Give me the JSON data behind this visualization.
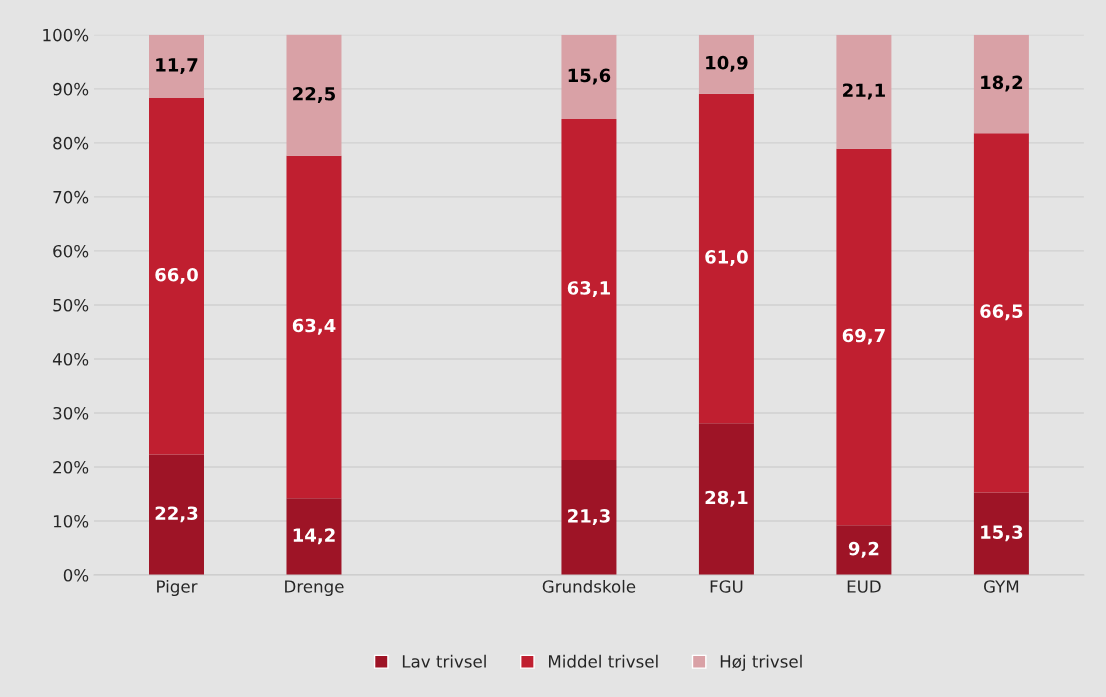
{
  "chart_data": {
    "type": "bar",
    "stacked": true,
    "categories": [
      "Piger",
      "Drenge",
      null,
      "Grundskole",
      "FGU",
      "EUD",
      "GYM"
    ],
    "series": [
      {
        "name": "Lav trivsel",
        "color": "#9e1426",
        "values": [
          22.3,
          14.2,
          null,
          21.3,
          28.1,
          9.2,
          15.3
        ],
        "value_labels": [
          "22,3",
          "14,2",
          null,
          "21,3",
          "28,1",
          "9,2",
          "15,3"
        ]
      },
      {
        "name": "Middel trivsel",
        "color": "#c01f30",
        "values": [
          66.0,
          63.4,
          null,
          63.1,
          61.0,
          69.7,
          66.5
        ],
        "value_labels": [
          "66,0",
          "63,4",
          null,
          "63,1",
          "61,0",
          "69,7",
          "66,5"
        ]
      },
      {
        "name": "Høj trivsel",
        "color": "#d9a1a6",
        "values": [
          11.7,
          22.5,
          null,
          15.6,
          10.9,
          21.1,
          18.2
        ],
        "value_labels": [
          "11,7",
          "22,5",
          null,
          "15,6",
          "10,9",
          "21,1",
          "18,2"
        ]
      }
    ],
    "ylim": [
      0,
      100
    ],
    "yticks": [
      {
        "value": 0,
        "label": "0%"
      },
      {
        "value": 10,
        "label": "10%"
      },
      {
        "value": 20,
        "label": "20%"
      },
      {
        "value": 30,
        "label": "30%"
      },
      {
        "value": 40,
        "label": "40%"
      },
      {
        "value": 50,
        "label": "50%"
      },
      {
        "value": 60,
        "label": "60%"
      },
      {
        "value": 70,
        "label": "70%"
      },
      {
        "value": 80,
        "label": "80%"
      },
      {
        "value": 90,
        "label": "90%"
      },
      {
        "value": 100,
        "label": "100%"
      }
    ],
    "grid": "y",
    "legend": "bottom"
  }
}
